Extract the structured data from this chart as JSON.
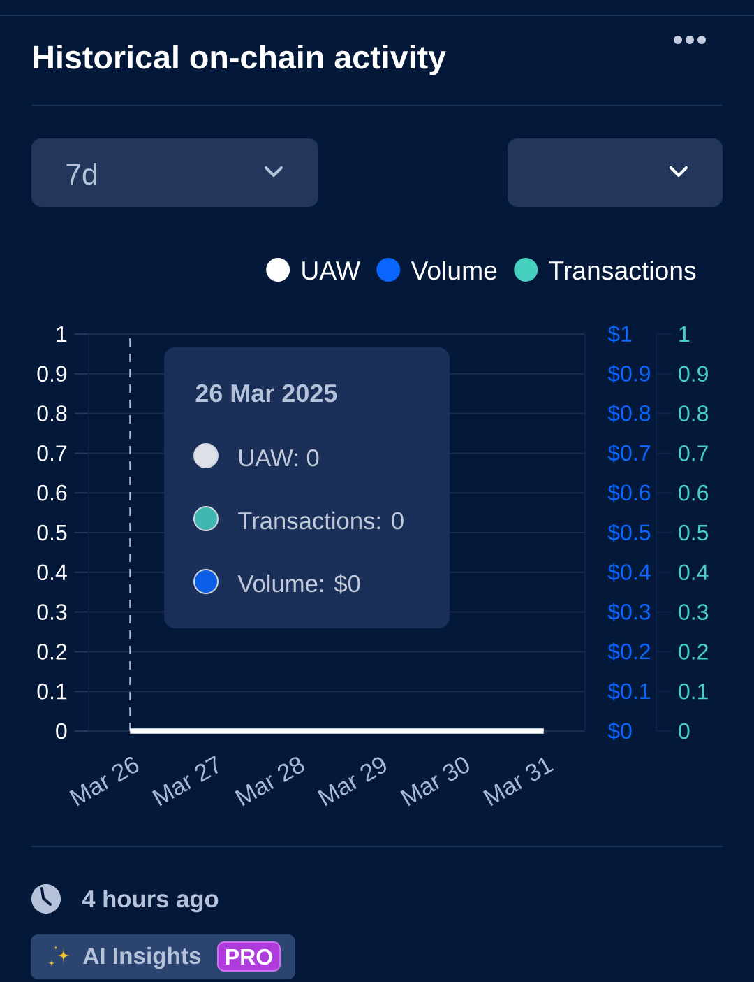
{
  "chart_data": {
    "type": "line",
    "title": "Historical on-chain activity",
    "categories": [
      "Mar 26",
      "Mar 27",
      "Mar 28",
      "Mar 29",
      "Mar 30",
      "Mar 31"
    ],
    "series": [
      {
        "name": "UAW",
        "color": "#ffffff",
        "values": [
          0,
          0,
          0,
          0,
          0,
          0
        ]
      },
      {
        "name": "Volume",
        "color": "#0a66ff",
        "axis": "y2",
        "values": [
          null,
          null,
          null,
          null,
          null,
          null
        ]
      },
      {
        "name": "Transactions",
        "color": "#45d0c0",
        "axis": "y3",
        "values": [
          null,
          null,
          null,
          null,
          null,
          null
        ]
      }
    ],
    "ylim": [
      0,
      1
    ],
    "yticks": [
      0,
      0.1,
      0.2,
      0.3,
      0.4,
      0.5,
      0.6,
      0.7,
      0.8,
      0.9,
      1
    ],
    "y2lim": [
      0,
      1
    ],
    "y2ticks": [
      {
        "value": 0,
        "label": "$0"
      },
      {
        "value": 0.1,
        "label": "$0.1"
      },
      {
        "value": 0.2,
        "label": "$0.2"
      },
      {
        "value": 0.3,
        "label": "$0.3"
      },
      {
        "value": 0.4,
        "label": "$0.4"
      },
      {
        "value": 0.5,
        "label": "$0.5"
      },
      {
        "value": 0.6,
        "label": "$0.6"
      },
      {
        "value": 0.7,
        "label": "$0.7"
      },
      {
        "value": 0.8,
        "label": "$0.8"
      },
      {
        "value": 0.9,
        "label": "$0.9"
      },
      {
        "value": 1,
        "label": "$1"
      }
    ],
    "y3lim": [
      0,
      1
    ],
    "y3ticks": [
      0,
      0.1,
      0.2,
      0.3,
      0.4,
      0.5,
      0.6,
      0.7,
      0.8,
      0.9,
      1
    ],
    "grid": "y",
    "legend": "top right",
    "line_style": "solid",
    "ref_lines": [
      {
        "axis": "x",
        "value": "Mar 26",
        "color": "#a9b8d4",
        "line_style": "dashed"
      }
    ],
    "annotations": [
      "26 Mar 2025",
      "UAW: 0",
      "Transactions: 0",
      "Volume: $0",
      "7d",
      "4 hours ago",
      "AI Insights",
      "PRO"
    ]
  }
}
